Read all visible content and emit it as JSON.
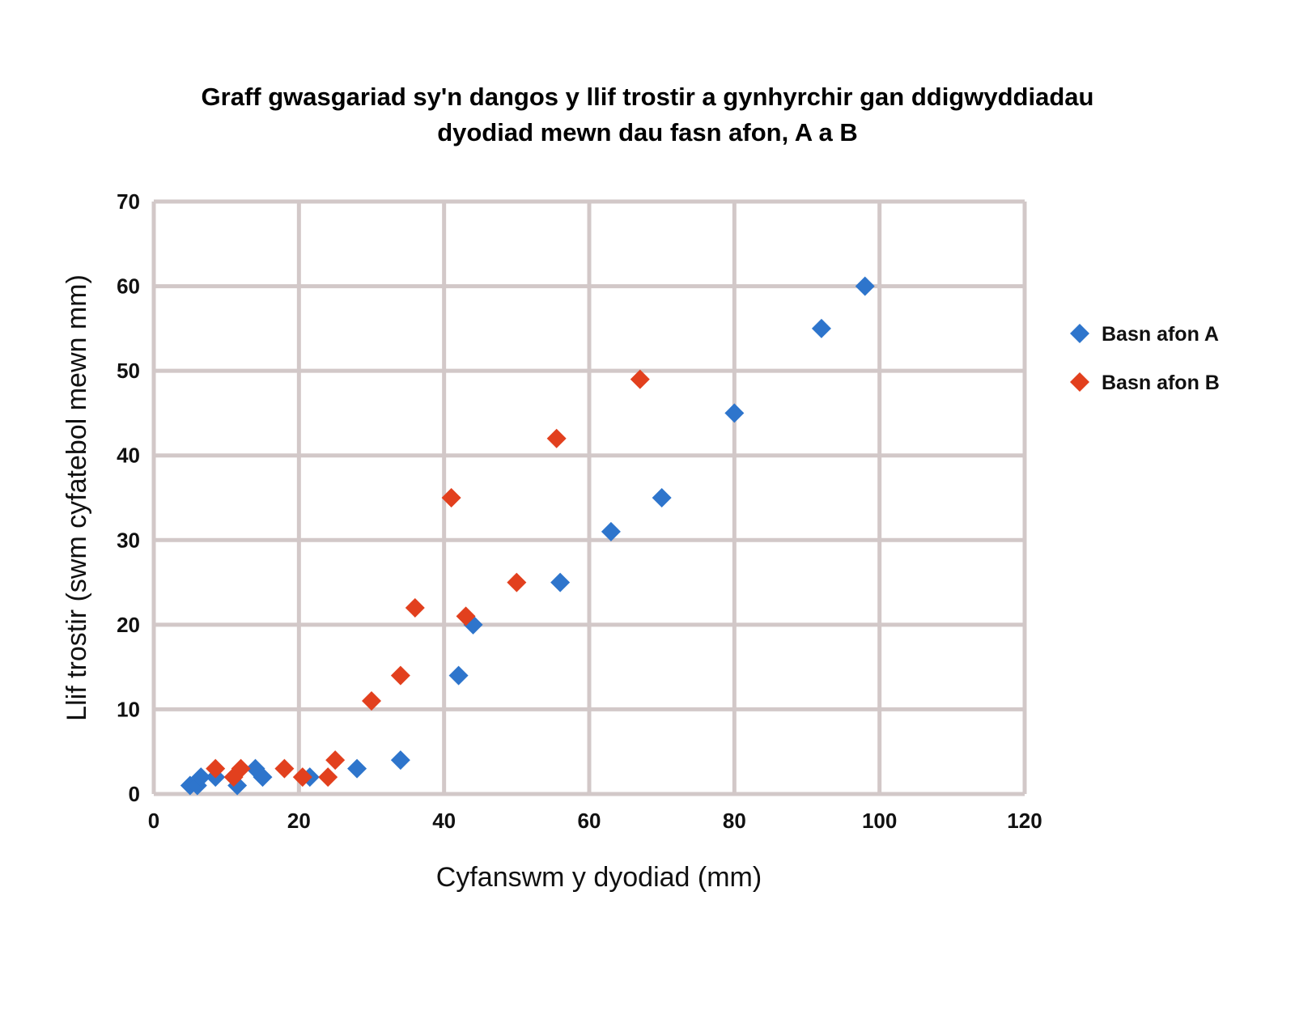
{
  "chart_data": {
    "type": "scatter",
    "title": [
      "Graff gwasgariad sy'n dangos y llif trostir a gynhyrchir gan ddigwyddiadau",
      "dyodiad mewn dau fasn afon, A a B"
    ],
    "xlabel": "Cyfanswm y dyodiad (mm)",
    "ylabel": "Llif trostir (swm cyfatebol mewn mm)",
    "xlim": [
      0,
      120
    ],
    "ylim": [
      0,
      70
    ],
    "x_ticks": [
      "0",
      "20",
      "40",
      "60",
      "80",
      "100",
      "120"
    ],
    "y_ticks": [
      "0",
      "10",
      "20",
      "30",
      "40",
      "50",
      "60",
      "70"
    ],
    "grid": true,
    "legend_position": "right",
    "marker": "diamond",
    "series": [
      {
        "name": "Basn afon A",
        "color": "#2e75cc",
        "points": [
          [
            5,
            1
          ],
          [
            6,
            1
          ],
          [
            6.5,
            2
          ],
          [
            8.5,
            2
          ],
          [
            11.5,
            1
          ],
          [
            14,
            3
          ],
          [
            15,
            2
          ],
          [
            21.5,
            2
          ],
          [
            28,
            3
          ],
          [
            34,
            4
          ],
          [
            42,
            14
          ],
          [
            44,
            20
          ],
          [
            56,
            25
          ],
          [
            63,
            31
          ],
          [
            70,
            35
          ],
          [
            80,
            45
          ],
          [
            92,
            55
          ],
          [
            98,
            60
          ]
        ]
      },
      {
        "name": "Basn afon B",
        "color": "#e2401e",
        "points": [
          [
            8.5,
            3
          ],
          [
            11,
            2
          ],
          [
            12,
            3
          ],
          [
            18,
            3
          ],
          [
            20.5,
            2
          ],
          [
            24,
            2
          ],
          [
            25,
            4
          ],
          [
            30,
            11
          ],
          [
            34,
            14
          ],
          [
            36,
            22
          ],
          [
            41,
            35
          ],
          [
            43,
            21
          ],
          [
            50,
            25
          ],
          [
            55.5,
            42
          ],
          [
            67,
            49
          ]
        ]
      }
    ]
  }
}
